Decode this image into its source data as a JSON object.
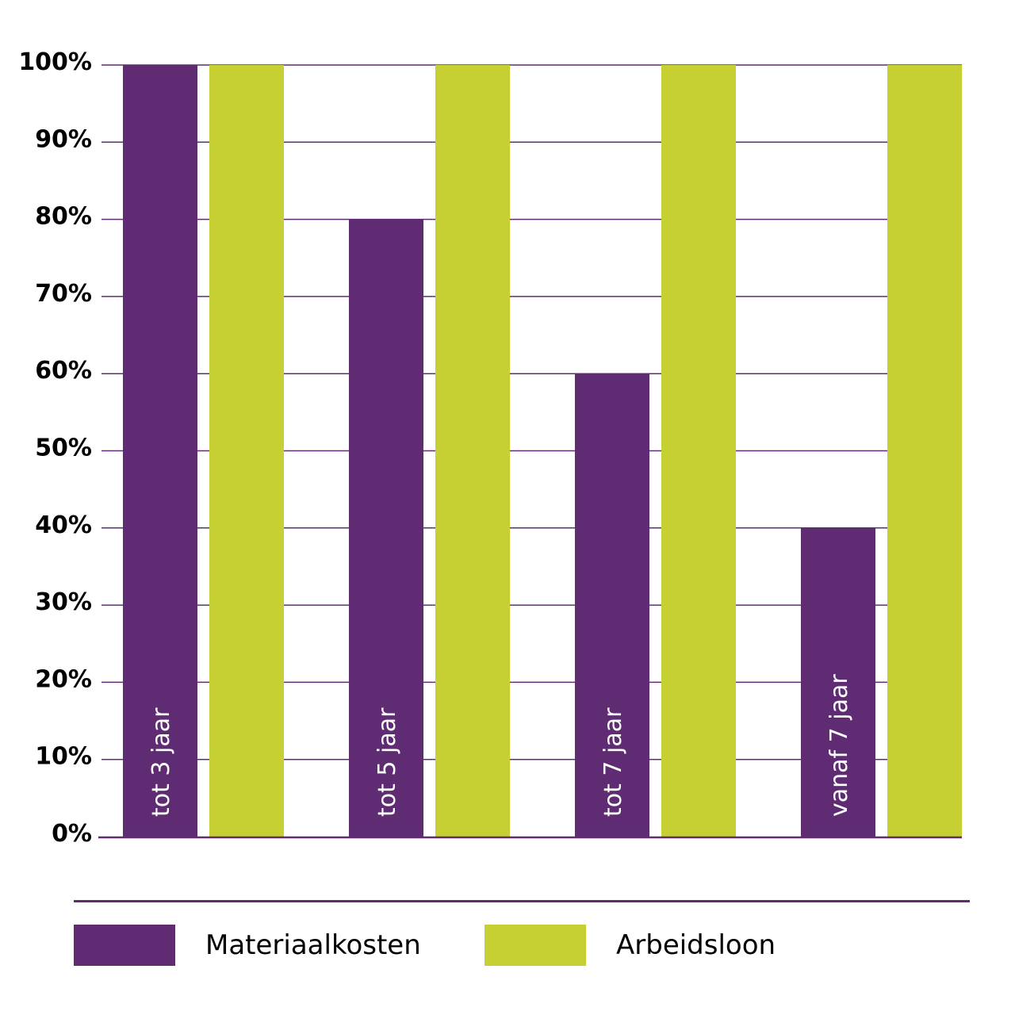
{
  "chart_data": {
    "type": "bar",
    "categories": [
      "tot 3 jaar",
      "tot 5 jaar",
      "tot 7 jaar",
      "vanaf 7 jaar"
    ],
    "series": [
      {
        "name": "Materiaalkosten",
        "values": [
          100,
          80,
          60,
          40
        ],
        "color": "#5f2c74"
      },
      {
        "name": "Arbeidsloon",
        "values": [
          100,
          100,
          100,
          100
        ],
        "color": "#c7d033"
      }
    ],
    "yticks": [
      "0%",
      "10%",
      "20%",
      "30%",
      "40%",
      "50%",
      "60%",
      "70%",
      "80%",
      "90%",
      "100%"
    ],
    "ylim": [
      0,
      100
    ],
    "grid": true,
    "gridColor": "#5f2c74",
    "legend_position": "bottom"
  }
}
